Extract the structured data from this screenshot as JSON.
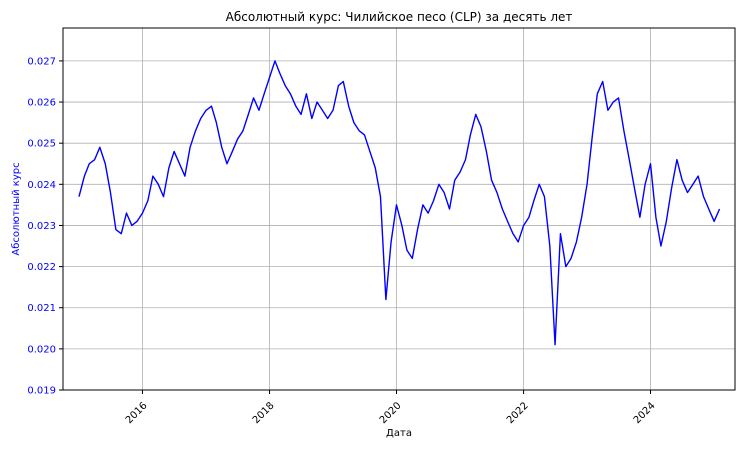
{
  "chart_data": {
    "type": "line",
    "title": "Абсолютный курс: Чилийское песо (CLP) за десять лет",
    "xlabel": "Дата",
    "ylabel": "Абсолютный курс",
    "xlim": [
      "2014-10-01",
      "2025-05-01"
    ],
    "ylim": [
      0.019,
      0.0278
    ],
    "x_ticks": [
      "2016",
      "2018",
      "2020",
      "2022",
      "2024"
    ],
    "y_ticks": [
      "0.019",
      "0.020",
      "0.021",
      "0.022",
      "0.023",
      "0.024",
      "0.025",
      "0.026",
      "0.027"
    ],
    "grid": true,
    "line_color": "#0000ff",
    "ylabel_color": "#0000ff",
    "series": [
      {
        "x": [
          "2015-01-01",
          "2015-02-01",
          "2015-03-01",
          "2015-04-01",
          "2015-05-01",
          "2015-06-01",
          "2015-07-01",
          "2015-08-01",
          "2015-09-01",
          "2015-10-01",
          "2015-11-01",
          "2015-12-01",
          "2016-01-01",
          "2016-02-01",
          "2016-03-01",
          "2016-04-01",
          "2016-05-01",
          "2016-06-01",
          "2016-07-01",
          "2016-08-01",
          "2016-09-01",
          "2016-10-01",
          "2016-11-01",
          "2016-12-01",
          "2017-01-01",
          "2017-02-01",
          "2017-03-01",
          "2017-04-01",
          "2017-05-01",
          "2017-06-01",
          "2017-07-01",
          "2017-08-01",
          "2017-09-01",
          "2017-10-01",
          "2017-11-01",
          "2017-12-01",
          "2018-01-01",
          "2018-02-01",
          "2018-03-01",
          "2018-04-01",
          "2018-05-01",
          "2018-06-01",
          "2018-07-01",
          "2018-08-01",
          "2018-09-01",
          "2018-10-01",
          "2018-11-01",
          "2018-12-01",
          "2019-01-01",
          "2019-02-01",
          "2019-03-01",
          "2019-04-01",
          "2019-05-01",
          "2019-06-01",
          "2019-07-01",
          "2019-08-01",
          "2019-09-01",
          "2019-10-01",
          "2019-11-01",
          "2019-12-01",
          "2020-01-01",
          "2020-02-01",
          "2020-03-01",
          "2020-04-01",
          "2020-05-01",
          "2020-06-01",
          "2020-07-01",
          "2020-08-01",
          "2020-09-01",
          "2020-10-01",
          "2020-11-01",
          "2020-12-01",
          "2021-01-01",
          "2021-02-01",
          "2021-03-01",
          "2021-04-01",
          "2021-05-01",
          "2021-06-01",
          "2021-07-01",
          "2021-08-01",
          "2021-09-01",
          "2021-10-01",
          "2021-11-01",
          "2021-12-01",
          "2022-01-01",
          "2022-02-01",
          "2022-03-01",
          "2022-04-01",
          "2022-05-01",
          "2022-06-01",
          "2022-07-01",
          "2022-08-01",
          "2022-09-01",
          "2022-10-01",
          "2022-11-01",
          "2022-12-01",
          "2023-01-01",
          "2023-02-01",
          "2023-03-01",
          "2023-04-01",
          "2023-05-01",
          "2023-06-01",
          "2023-07-01",
          "2023-08-01",
          "2023-09-01",
          "2023-10-01",
          "2023-11-01",
          "2023-12-01",
          "2024-01-01",
          "2024-02-01",
          "2024-03-01",
          "2024-04-01",
          "2024-05-01",
          "2024-06-01",
          "2024-07-01",
          "2024-08-01",
          "2024-09-01",
          "2024-10-01",
          "2024-11-01",
          "2024-12-01",
          "2025-01-01",
          "2025-02-01"
        ],
        "y": [
          0.0237,
          0.0242,
          0.0245,
          0.0246,
          0.0249,
          0.0245,
          0.0238,
          0.0229,
          0.0228,
          0.0233,
          0.023,
          0.0231,
          0.0233,
          0.0236,
          0.0242,
          0.024,
          0.0237,
          0.0244,
          0.0248,
          0.0245,
          0.0242,
          0.0249,
          0.0253,
          0.0256,
          0.0258,
          0.0259,
          0.0255,
          0.0249,
          0.0245,
          0.0248,
          0.0251,
          0.0253,
          0.0257,
          0.0261,
          0.0258,
          0.0262,
          0.0266,
          0.027,
          0.0267,
          0.0264,
          0.0262,
          0.0259,
          0.0257,
          0.0262,
          0.0256,
          0.026,
          0.0258,
          0.0256,
          0.0258,
          0.0264,
          0.0265,
          0.0259,
          0.0255,
          0.0253,
          0.0252,
          0.0248,
          0.0244,
          0.0237,
          0.0212,
          0.0226,
          0.0235,
          0.023,
          0.0224,
          0.0222,
          0.0229,
          0.0235,
          0.0233,
          0.0236,
          0.024,
          0.0238,
          0.0234,
          0.0241,
          0.0243,
          0.0246,
          0.0252,
          0.0257,
          0.0254,
          0.0248,
          0.0241,
          0.0238,
          0.0234,
          0.0231,
          0.0228,
          0.0226,
          0.023,
          0.0232,
          0.0236,
          0.024,
          0.0237,
          0.0225,
          0.0201,
          0.0228,
          0.022,
          0.0222,
          0.0226,
          0.0232,
          0.024,
          0.0252,
          0.0262,
          0.0265,
          0.0258,
          0.026,
          0.0261,
          0.0253,
          0.0246,
          0.0239,
          0.0232,
          0.024,
          0.0245,
          0.0232,
          0.0225,
          0.0231,
          0.0239,
          0.0246,
          0.0241,
          0.0238,
          0.024,
          0.0242,
          0.0237,
          0.0234,
          0.0231,
          0.0234
        ]
      }
    ]
  }
}
